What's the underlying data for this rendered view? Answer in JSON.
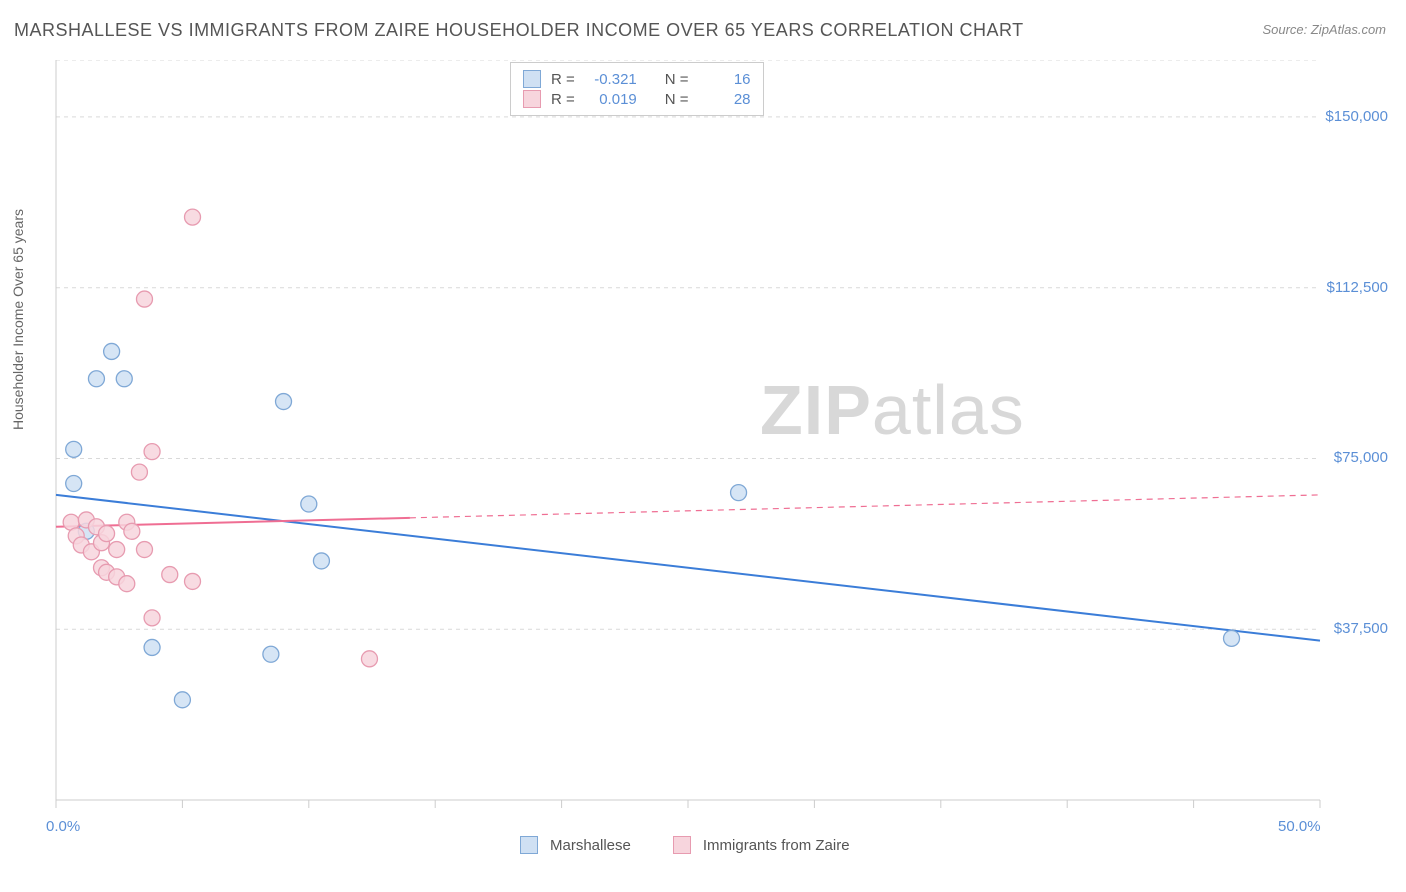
{
  "title": "MARSHALLESE VS IMMIGRANTS FROM ZAIRE HOUSEHOLDER INCOME OVER 65 YEARS CORRELATION CHART",
  "source": "Source: ZipAtlas.com",
  "ylabel": "Householder Income Over 65 years",
  "watermark_zip": "ZIP",
  "watermark_atlas": "atlas",
  "chart": {
    "type": "scatter",
    "xlim": [
      0,
      50
    ],
    "ylim": [
      0,
      162500
    ],
    "x_ticks": [
      0,
      5,
      10,
      15,
      20,
      25,
      30,
      35,
      40,
      45,
      50
    ],
    "x_tick_labels": {
      "0": "0.0%",
      "50": "50.0%"
    },
    "y_gridlines": [
      37500,
      75000,
      112500,
      150000,
      162500
    ],
    "y_tick_labels": {
      "37500": "$37,500",
      "75000": "$75,000",
      "112500": "$112,500",
      "150000": "$150,000"
    },
    "grid_color": "#d9d9d9",
    "axis_color": "#cccccc",
    "background_color": "#ffffff",
    "marker_radius": 8,
    "marker_stroke_width": 1.3,
    "line_width": 2,
    "series": [
      {
        "name": "Marshallese",
        "fill": "#cfe0f3",
        "stroke": "#7fa8d6",
        "line_color": "#3b7dd8",
        "r": -0.321,
        "n": 16,
        "trend": {
          "x1": 0,
          "y1": 67000,
          "x2": 50,
          "y2": 35000,
          "solid_until_x": 50
        },
        "points": [
          {
            "x": 0.7,
            "y": 77000
          },
          {
            "x": 0.7,
            "y": 69500
          },
          {
            "x": 1.6,
            "y": 92500
          },
          {
            "x": 2.2,
            "y": 98500
          },
          {
            "x": 2.7,
            "y": 92500
          },
          {
            "x": 1.2,
            "y": 59000
          },
          {
            "x": 3.8,
            "y": 33500
          },
          {
            "x": 5.0,
            "y": 22000
          },
          {
            "x": 8.5,
            "y": 32000
          },
          {
            "x": 9.0,
            "y": 87500
          },
          {
            "x": 10.0,
            "y": 65000
          },
          {
            "x": 10.5,
            "y": 52500
          },
          {
            "x": 27.0,
            "y": 67500
          },
          {
            "x": 46.5,
            "y": 35500
          }
        ]
      },
      {
        "name": "Immigrants from Zaire",
        "fill": "#f7d5dd",
        "stroke": "#e79bb0",
        "line_color": "#ef6e93",
        "r": 0.019,
        "n": 28,
        "trend": {
          "x1": 0,
          "y1": 60000,
          "x2": 50,
          "y2": 67000,
          "solid_until_x": 14
        },
        "points": [
          {
            "x": 0.6,
            "y": 61000
          },
          {
            "x": 0.8,
            "y": 58000
          },
          {
            "x": 1.0,
            "y": 56000
          },
          {
            "x": 1.2,
            "y": 61500
          },
          {
            "x": 1.4,
            "y": 54500
          },
          {
            "x": 1.6,
            "y": 60000
          },
          {
            "x": 1.8,
            "y": 56500
          },
          {
            "x": 1.8,
            "y": 51000
          },
          {
            "x": 2.0,
            "y": 58500
          },
          {
            "x": 2.0,
            "y": 50000
          },
          {
            "x": 2.4,
            "y": 55000
          },
          {
            "x": 2.4,
            "y": 49000
          },
          {
            "x": 2.8,
            "y": 61000
          },
          {
            "x": 2.8,
            "y": 47500
          },
          {
            "x": 3.0,
            "y": 59000
          },
          {
            "x": 3.3,
            "y": 72000
          },
          {
            "x": 3.5,
            "y": 55000
          },
          {
            "x": 3.5,
            "y": 110000
          },
          {
            "x": 3.8,
            "y": 76500
          },
          {
            "x": 3.8,
            "y": 40000
          },
          {
            "x": 4.5,
            "y": 49500
          },
          {
            "x": 5.4,
            "y": 128000
          },
          {
            "x": 5.4,
            "y": 48000
          },
          {
            "x": 12.4,
            "y": 31000
          }
        ]
      }
    ]
  },
  "legend": {
    "series1_label": "Marshallese",
    "series2_label": "Immigrants from Zaire"
  },
  "corr_labels": {
    "R": "R =",
    "N": "N ="
  }
}
